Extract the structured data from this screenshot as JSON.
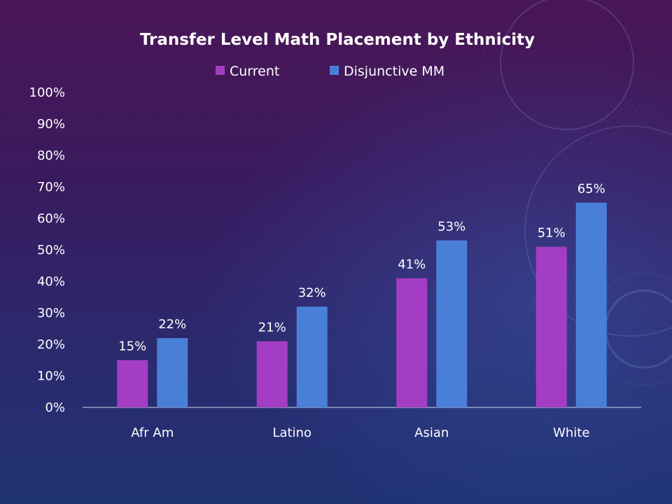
{
  "colors": {
    "current": "#a33ec4",
    "disjunctive": "#4a7fd8",
    "axis_line": "#c9d6f0",
    "text": "#ffffff"
  },
  "chart_data": {
    "type": "bar",
    "title": "Transfer Level Math Placement by Ethnicity",
    "categories": [
      "Afr Am",
      "Latino",
      "Asian",
      "White"
    ],
    "series": [
      {
        "name": "Current",
        "values": [
          15,
          21,
          41,
          51
        ],
        "labels": [
          "15%",
          "21%",
          "41%",
          "51%"
        ]
      },
      {
        "name": "Disjunctive MM",
        "values": [
          22,
          32,
          53,
          65
        ],
        "labels": [
          "22%",
          "32%",
          "53%",
          "65%"
        ]
      }
    ],
    "ylim": [
      0,
      100
    ],
    "yticks": [
      0,
      10,
      20,
      30,
      40,
      50,
      60,
      70,
      80,
      90,
      100
    ],
    "ytick_labels": [
      "0%",
      "10%",
      "20%",
      "30%",
      "40%",
      "50%",
      "60%",
      "70%",
      "80%",
      "90%",
      "100%"
    ],
    "xlabel": "",
    "ylabel": "",
    "grid": false,
    "legend": "top"
  }
}
